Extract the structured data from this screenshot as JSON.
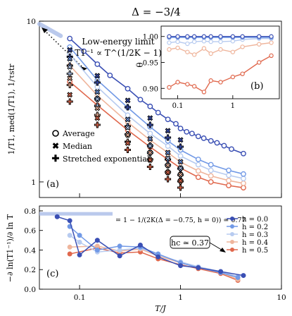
{
  "figure_title": "Δ = −3/4",
  "colors": {
    "h0": "#3a4fb4",
    "h02": "#7199e6",
    "h03": "#b7cbf0",
    "h04": "#efb59c",
    "h05": "#e0684d",
    "thick": "#a9bce8"
  },
  "chart_data": [
    {
      "type": "line",
      "panel_label": "(a)",
      "ylabel": "1/T1, med(1/T1), 1/τstr",
      "xscale": "log",
      "yscale": "log",
      "xlim": [
        0.04,
        10
      ],
      "ylim": [
        0.8,
        10
      ],
      "yticks": [
        1,
        10
      ],
      "yticklabels": [
        "1",
        "10"
      ],
      "annotation_line1": "Low-energy limit",
      "annotation_line2": "T1⁻¹ ∝ T^(1/2K − 1)",
      "legend": [
        "Average",
        "Median",
        "Stretched exponential"
      ],
      "limit_line": {
        "x": [
          0.04,
          0.065
        ],
        "y": [
          9.6,
          8.1
        ]
      },
      "x_markers": [
        0.08,
        0.15,
        0.3,
        0.5,
        0.75,
        1.0,
        1.5,
        2.0,
        3.0,
        4.2
      ],
      "avg_series": [
        {
          "name": "h = 0.0",
          "x": [
            0.08,
            0.11,
            0.15,
            0.2,
            0.3,
            0.4,
            0.5,
            0.6,
            0.75,
            0.9,
            1.0,
            1.15,
            1.3,
            1.5,
            1.7,
            2.0,
            2.3,
            2.7,
            3.2,
            4.2
          ],
          "y": [
            7.8,
            6.5,
            5.4,
            4.6,
            3.8,
            3.25,
            2.95,
            2.7,
            2.45,
            2.3,
            2.15,
            2.05,
            2.0,
            1.92,
            1.87,
            1.8,
            1.75,
            1.68,
            1.6,
            1.5
          ]
        },
        {
          "name": "h = 0.2",
          "x": [
            0.08,
            0.15,
            0.3,
            0.5,
            0.75,
            1.0,
            1.5,
            2.0,
            3.0,
            4.2
          ],
          "y": [
            6.9,
            4.3,
            2.9,
            2.2,
            1.8,
            1.58,
            1.38,
            1.28,
            1.18,
            1.12
          ]
        },
        {
          "name": "h = 0.3",
          "x": [
            0.08,
            0.15,
            0.3,
            0.5,
            0.75,
            1.0,
            1.5,
            2.0,
            3.0,
            4.2
          ],
          "y": [
            6.2,
            3.9,
            2.6,
            2.0,
            1.67,
            1.45,
            1.28,
            1.18,
            1.1,
            1.05
          ]
        },
        {
          "name": "h = 0.4",
          "x": [
            0.08,
            0.15,
            0.3,
            0.5,
            0.75,
            1.0,
            1.5,
            2.0,
            3.0,
            4.2
          ],
          "y": [
            5.3,
            3.45,
            2.35,
            1.82,
            1.52,
            1.33,
            1.17,
            1.09,
            1.02,
            0.98
          ]
        },
        {
          "name": "h = 0.5",
          "x": [
            0.08,
            0.15,
            0.3,
            0.5,
            0.75,
            1.0,
            1.5,
            2.0,
            3.0,
            4.2
          ],
          "y": [
            4.2,
            3.0,
            2.1,
            1.65,
            1.38,
            1.22,
            1.07,
            1.0,
            0.95,
            0.92
          ]
        }
      ],
      "inset": {
        "panel_label": "(b)",
        "ylabel": "θ",
        "xscale": "log",
        "xlim": [
          0.05,
          7
        ],
        "ylim": [
          0.88,
          1.02
        ],
        "yticks": [
          0.9,
          0.95,
          1.0
        ],
        "yticklabels": [
          "0.90",
          "0.95",
          "1.00"
        ],
        "xticks": [
          0.1,
          1
        ],
        "xticklabels": [
          "0.1",
          "1"
        ],
        "x": [
          0.07,
          0.1,
          0.15,
          0.2,
          0.3,
          0.4,
          0.6,
          1.0,
          1.5,
          3.0,
          5.0
        ],
        "series": [
          {
            "name": "h = 0.0",
            "y": [
              1.0,
              1.0,
              1.0,
              1.0,
              1.0,
              1.0,
              1.0,
              1.0,
              1.0,
              1.0,
              1.0
            ]
          },
          {
            "name": "h = 0.2",
            "y": [
              0.998,
              0.998,
              0.998,
              0.998,
              0.998,
              0.998,
              0.998,
              0.998,
              0.998,
              0.998,
              0.998
            ]
          },
          {
            "name": "h = 0.3",
            "y": [
              0.988,
              0.99,
              0.986,
              0.99,
              0.991,
              0.99,
              0.99,
              0.991,
              0.994,
              0.996,
              0.996
            ]
          },
          {
            "name": "h = 0.4",
            "y": [
              0.975,
              0.978,
              0.97,
              0.965,
              0.977,
              0.967,
              0.975,
              0.97,
              0.98,
              0.985,
              0.988
            ]
          },
          {
            "name": "h = 0.5",
            "y": [
              0.902,
              0.912,
              0.908,
              0.904,
              0.893,
              0.915,
              0.912,
              0.922,
              0.928,
              0.95,
              0.963
            ]
          }
        ]
      }
    },
    {
      "type": "line",
      "panel_label": "(c)",
      "xlabel": "T/J",
      "ylabel": "−∂ ln(T1⁻¹)/∂ ln T",
      "xscale": "log",
      "xlim": [
        0.04,
        10
      ],
      "ylim": [
        0.0,
        0.85
      ],
      "yticks": [
        0.0,
        0.2,
        0.4,
        0.6,
        0.8
      ],
      "yticklabels": [
        "0.0",
        "0.2",
        "0.4",
        "0.6",
        "0.8"
      ],
      "xticks": [
        0.1,
        1,
        10
      ],
      "xticklabels": [
        "0.1",
        "1",
        "10"
      ],
      "hline_y": 0.77,
      "hline_label": "= 1 − 1/(2K(Δ = −0.75, h = 0)) ≃ 0.77",
      "hc_label": "hc ≃ 0.37",
      "series": [
        {
          "name": "h = 0.0",
          "x": [
            0.06,
            0.08,
            0.1,
            0.15,
            0.25,
            0.4,
            0.6,
            1.0,
            1.5,
            2.5,
            4.2
          ],
          "y": [
            0.74,
            0.7,
            0.35,
            0.5,
            0.34,
            0.45,
            0.33,
            0.24,
            0.22,
            0.18,
            0.14
          ]
        },
        {
          "name": "h = 0.2",
          "x": [
            0.08,
            0.1,
            0.15,
            0.25,
            0.4,
            0.6,
            1.0,
            1.5,
            2.5,
            3.7
          ],
          "y": [
            0.64,
            0.55,
            0.4,
            0.44,
            0.43,
            0.36,
            0.27,
            0.22,
            0.17,
            0.12
          ]
        },
        {
          "name": "h = 0.3",
          "x": [
            0.08,
            0.1,
            0.15,
            0.25,
            0.4,
            0.6,
            1.0,
            1.5,
            2.5,
            3.7
          ],
          "y": [
            0.55,
            0.48,
            0.38,
            0.4,
            0.42,
            0.35,
            0.28,
            0.23,
            0.18,
            0.13
          ]
        },
        {
          "name": "h = 0.4",
          "x": [
            0.08,
            0.15,
            0.25,
            0.4,
            0.6,
            1.0,
            1.5,
            2.5,
            3.7
          ],
          "y": [
            0.43,
            0.44,
            0.39,
            0.41,
            0.34,
            0.27,
            0.22,
            0.17,
            0.1
          ]
        },
        {
          "name": "h = 0.5",
          "x": [
            0.08,
            0.15,
            0.25,
            0.4,
            0.6,
            1.0,
            1.5,
            2.5,
            3.7
          ],
          "y": [
            0.36,
            0.42,
            0.37,
            0.38,
            0.31,
            0.25,
            0.21,
            0.16,
            0.09
          ]
        }
      ],
      "legend": [
        "h = 0.0",
        "h = 0.2",
        "h = 0.3",
        "h = 0.4",
        "h = 0.5"
      ]
    }
  ]
}
